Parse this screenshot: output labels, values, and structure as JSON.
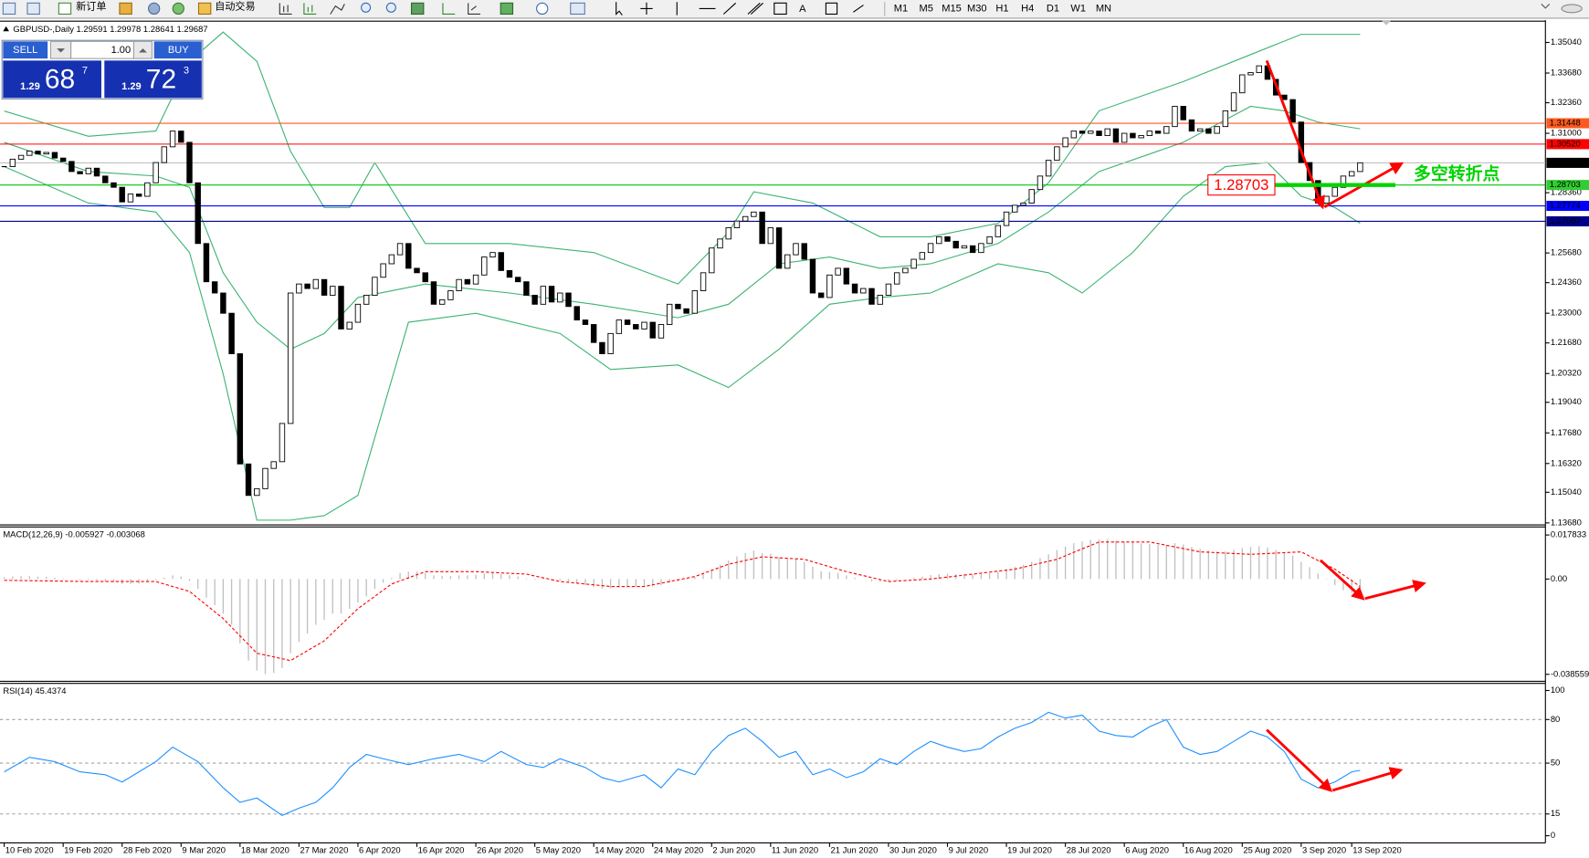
{
  "toolbar": {
    "new_order": "新订单",
    "auto_trading": "自动交易",
    "timeframes": [
      "M1",
      "M5",
      "M15",
      "M30",
      "H1",
      "H4",
      "D1",
      "W1",
      "MN"
    ]
  },
  "trade_panel": {
    "sell": "SELL",
    "lot": "1.00",
    "buy": "BUY",
    "sell_big": "1.29",
    "sell_pips": "68",
    "sell_frac": "7",
    "buy_big": "1.29",
    "buy_pips": "72",
    "buy_frac": "3"
  },
  "chart_data": [
    {
      "type": "candlestick",
      "title": "GBPUSD-,Daily 1.29591 1.29978 1.28641 1.29687",
      "bull_color": "#ffffff",
      "bear_color": "#000000",
      "closes": [
        1.2952,
        1.2985,
        1.3002,
        1.3021,
        1.3008,
        1.3015,
        1.299,
        1.2975,
        1.293,
        1.292,
        1.2945,
        1.291,
        1.288,
        1.286,
        1.2795,
        1.283,
        1.282,
        1.288,
        1.297,
        1.304,
        1.311,
        1.306,
        1.288,
        1.261,
        1.244,
        1.239,
        1.23,
        1.212,
        1.163,
        1.149,
        1.152,
        1.161,
        1.164,
        1.181,
        1.239,
        1.243,
        1.241,
        1.245,
        1.238,
        1.242,
        1.223,
        1.226,
        1.234,
        1.238,
        1.246,
        1.252,
        1.256,
        1.261,
        1.25,
        1.248,
        1.244,
        1.234,
        1.236,
        1.24,
        1.245,
        1.243,
        1.247,
        1.255,
        1.257,
        1.249,
        1.246,
        1.244,
        1.238,
        1.234,
        1.242,
        1.235,
        1.239,
        1.233,
        1.227,
        1.225,
        1.217,
        1.212,
        1.221,
        1.227,
        1.225,
        1.223,
        1.226,
        1.219,
        1.225,
        1.234,
        1.232,
        1.23,
        1.24,
        1.248,
        1.259,
        1.263,
        1.268,
        1.271,
        1.273,
        1.275,
        1.261,
        1.268,
        1.25,
        1.256,
        1.261,
        1.254,
        1.239,
        1.237,
        1.247,
        1.25,
        1.243,
        1.239,
        1.241,
        1.234,
        1.238,
        1.243,
        1.248,
        1.25,
        1.254,
        1.257,
        1.261,
        1.264,
        1.262,
        1.259,
        1.26,
        1.257,
        1.261,
        1.264,
        1.269,
        1.275,
        1.278,
        1.279,
        1.285,
        1.291,
        1.298,
        1.304,
        1.308,
        1.311,
        1.31,
        1.311,
        1.309,
        1.312,
        1.306,
        1.31,
        1.308,
        1.309,
        1.311,
        1.31,
        1.313,
        1.322,
        1.316,
        1.311,
        1.312,
        1.31,
        1.313,
        1.32,
        1.328,
        1.336,
        1.337,
        1.34,
        1.334,
        1.327,
        1.325,
        1.315,
        1.297,
        1.289,
        1.279,
        1.282,
        1.286,
        1.291,
        1.293,
        1.2969
      ],
      "bands": {
        "color": "#3cb371",
        "upper": {
          "x": [
            0,
            10,
            18,
            22,
            26,
            30,
            34,
            38,
            41,
            44,
            50,
            60,
            70,
            80,
            86,
            89,
            96,
            104,
            110,
            118,
            124,
            130,
            140,
            148,
            154,
            161
          ],
          "values": [
            1.3199,
            1.3087,
            1.311,
            1.342,
            1.355,
            1.342,
            1.302,
            1.277,
            1.277,
            1.297,
            1.261,
            1.261,
            1.257,
            1.243,
            1.266,
            1.284,
            1.279,
            1.264,
            1.264,
            1.27,
            1.288,
            1.32,
            1.333,
            1.345,
            1.354,
            1.354
          ]
        },
        "middle": {
          "x": [
            0,
            10,
            18,
            22,
            26,
            30,
            34,
            38,
            42,
            50,
            60,
            70,
            80,
            86,
            92,
            98,
            104,
            110,
            118,
            124,
            130,
            140,
            148,
            152,
            156,
            161
          ],
          "values": [
            1.306,
            1.293,
            1.291,
            1.286,
            1.248,
            1.226,
            1.214,
            1.221,
            1.237,
            1.243,
            1.239,
            1.234,
            1.228,
            1.234,
            1.252,
            1.255,
            1.25,
            1.252,
            1.261,
            1.275,
            1.293,
            1.306,
            1.322,
            1.32,
            1.315,
            1.312
          ]
        },
        "lower": {
          "x": [
            0,
            10,
            18,
            22,
            26,
            30,
            34,
            38,
            42,
            48,
            56,
            66,
            72,
            80,
            86,
            92,
            98,
            104,
            110,
            118,
            124,
            128,
            134,
            140,
            145,
            150,
            154,
            158,
            161
          ],
          "values": [
            1.2952,
            1.279,
            1.275,
            1.257,
            1.203,
            1.138,
            1.138,
            1.14,
            1.149,
            1.226,
            1.23,
            1.221,
            1.205,
            1.207,
            1.197,
            1.214,
            1.234,
            1.237,
            1.239,
            1.252,
            1.248,
            1.239,
            1.257,
            1.282,
            1.2952,
            1.297,
            1.282,
            1.277,
            1.27
          ]
        }
      },
      "hlines": [
        {
          "value": 1.31448,
          "color": "#ff5a1e",
          "label_bg": "#ff5a1e"
        },
        {
          "value": 1.3052,
          "label": "1.30520",
          "color": "#ff0000",
          "label_bg": "#ff0000"
        },
        {
          "value": 1.29687,
          "color": "#c0c0c0",
          "label_bg": "#000000"
        },
        {
          "value": 1.28703,
          "color": "#00c800",
          "label_bg": "#32cd32"
        },
        {
          "value": 1.27774,
          "color": "#0000ff",
          "label_bg": "#0000ff"
        },
        {
          "value": 1.27087,
          "color": "#00008b",
          "label_bg": "#00008b"
        }
      ],
      "annotation": {
        "text": "多空转折点",
        "color": "#00d400"
      },
      "xlim": [
        -0.5,
        183
      ],
      "ylim": [
        1.1359,
        1.3594
      ],
      "yticks": [
        {
          "value": 1.3504,
          "label": "1.35040"
        },
        {
          "value": 1.3368,
          "label": "1.33680"
        },
        {
          "value": 1.3236,
          "label": "1.32360"
        },
        {
          "value": 1.31,
          "label": "1.31000"
        },
        {
          "value": 1.2836,
          "label": "1.28360"
        },
        {
          "value": 1.2568,
          "label": "1.25680"
        },
        {
          "value": 1.2436,
          "label": "1.24360"
        },
        {
          "value": 1.23,
          "label": "1.23000"
        },
        {
          "value": 1.2168,
          "label": "1.21680"
        },
        {
          "value": 1.2032,
          "label": "1.20320"
        },
        {
          "value": 1.1904,
          "label": "1.19040"
        },
        {
          "value": 1.1768,
          "label": "1.17680"
        },
        {
          "value": 1.1632,
          "label": "1.16320"
        },
        {
          "value": 1.1504,
          "label": "1.15040"
        },
        {
          "value": 1.1368,
          "label": "1.13680"
        }
      ]
    },
    {
      "type": "macd",
      "title": "MACD(12,26,9) -0.005927 -0.003068",
      "histogram": {
        "color": "#c0c0c0",
        "values": [
          0.0008,
          0.001,
          0.0011,
          0.0012,
          0.001,
          0.0009,
          0.0006,
          0.0003,
          -0.0001,
          -0.0004,
          -0.0003,
          -0.0006,
          -0.001,
          -0.0013,
          -0.002,
          -0.0019,
          -0.0018,
          -0.0012,
          -0.0004,
          0.0006,
          0.0015,
          0.001,
          -0.0008,
          -0.004,
          -0.0075,
          -0.0105,
          -0.014,
          -0.0185,
          -0.026,
          -0.033,
          -0.037,
          -0.0385,
          -0.038,
          -0.036,
          -0.03,
          -0.0255,
          -0.022,
          -0.0185,
          -0.0165,
          -0.014,
          -0.014,
          -0.012,
          -0.0095,
          -0.007,
          -0.004,
          -0.0015,
          0.0005,
          0.0025,
          0.003,
          0.003,
          0.0025,
          0.0015,
          0.0012,
          0.0012,
          0.0015,
          0.0015,
          0.0017,
          0.0022,
          0.0025,
          0.002,
          0.0015,
          0.001,
          0.0003,
          -0.0003,
          -0.0002,
          -0.0006,
          -0.0006,
          -0.001,
          -0.0017,
          -0.0024,
          -0.0033,
          -0.004,
          -0.0038,
          -0.0034,
          -0.0032,
          -0.003,
          -0.0028,
          -0.003,
          -0.0025,
          -0.0015,
          -0.0008,
          -0.0003,
          0.0008,
          0.0022,
          0.004,
          0.0058,
          0.0075,
          0.0092,
          0.0105,
          0.0115,
          0.0105,
          0.0102,
          0.0088,
          0.0082,
          0.008,
          0.007,
          0.005,
          0.0032,
          0.0028,
          0.0025,
          0.0015,
          0.0005,
          0.0,
          -0.001,
          -0.0012,
          -0.001,
          -0.0005,
          0.0,
          0.0005,
          0.001,
          0.0016,
          0.002,
          0.0022,
          0.002,
          0.002,
          0.0018,
          0.002,
          0.0024,
          0.003,
          0.004,
          0.005,
          0.0058,
          0.007,
          0.0085,
          0.01,
          0.0118,
          0.0132,
          0.0145,
          0.0152,
          0.0158,
          0.016,
          0.0162,
          0.0155,
          0.0152,
          0.0148,
          0.0144,
          0.0142,
          0.0138,
          0.0138,
          0.0145,
          0.014,
          0.013,
          0.0122,
          0.0115,
          0.0112,
          0.0112,
          0.0118,
          0.0125,
          0.013,
          0.0133,
          0.0128,
          0.0118,
          0.0108,
          0.0095,
          0.007,
          0.0048,
          0.0022,
          0.0002,
          -0.0025,
          -0.0045,
          -0.0055,
          -0.0059
        ]
      },
      "signal": {
        "color": "#ff0000",
        "x": [
          0,
          10,
          18,
          22,
          26,
          30,
          34,
          38,
          42,
          46,
          50,
          56,
          62,
          66,
          72,
          76,
          82,
          86,
          90,
          95,
          100,
          105,
          110,
          115,
          120,
          125,
          130,
          136,
          142,
          148,
          154,
          158,
          161
        ],
        "values": [
          -0.0005,
          -0.001,
          -0.001,
          -0.005,
          -0.016,
          -0.03,
          -0.033,
          -0.025,
          -0.012,
          -0.002,
          0.003,
          0.003,
          0.002,
          -0.001,
          -0.003,
          -0.003,
          0.001,
          0.006,
          0.009,
          0.008,
          0.003,
          -0.001,
          0,
          0.002,
          0.004,
          0.008,
          0.015,
          0.015,
          0.011,
          0.01,
          0.011,
          0.004,
          -0.003
        ]
      },
      "xlim": [
        -0.5,
        183
      ],
      "ylim": [
        -0.0414,
        0.0211
      ],
      "yticks": [
        0.017833,
        {
          "value": 0,
          "label": "0.00"
        },
        -0.038559
      ]
    },
    {
      "type": "line",
      "title": "RSI(14) 45.4374",
      "color": "#1e90ff",
      "x": [
        0,
        3,
        6,
        9,
        12,
        14,
        16,
        18,
        20,
        23,
        26,
        28,
        30,
        33,
        35,
        37,
        39,
        41,
        43,
        45,
        48,
        51,
        54,
        57,
        59,
        62,
        64,
        66,
        69,
        71,
        73,
        76,
        78,
        80,
        82,
        84,
        86,
        88,
        90,
        92,
        94,
        96,
        98,
        100,
        102,
        104,
        106,
        108,
        110,
        112,
        114,
        116,
        118,
        120,
        122,
        124,
        126,
        128,
        130,
        132,
        134,
        136,
        138,
        140,
        142,
        144,
        146,
        148,
        150,
        152,
        154,
        156,
        158,
        160,
        161
      ],
      "values": [
        44,
        54,
        51,
        44,
        42,
        37,
        44,
        51,
        61,
        51,
        33,
        23,
        26,
        14,
        19,
        23,
        33,
        47,
        56,
        53,
        49,
        53,
        56,
        51,
        58,
        49,
        47,
        53,
        47,
        40,
        37,
        42,
        33,
        46,
        42,
        58,
        69,
        74,
        65,
        54,
        58,
        42,
        46,
        40,
        44,
        53,
        49,
        58,
        65,
        61,
        58,
        60,
        68,
        74,
        78,
        85,
        81,
        83,
        72,
        69,
        68,
        75,
        80,
        61,
        56,
        58,
        65,
        72,
        68,
        58,
        39,
        33,
        37,
        44,
        45
      ],
      "xlim": [
        -0.5,
        183
      ],
      "ylim": [
        -4.9,
        104.9
      ],
      "yticks": [
        100,
        80,
        50,
        15,
        0
      ],
      "levels": [
        80,
        50,
        15
      ],
      "xticks": [
        {
          "value": 0,
          "label": "10 Feb 2020"
        },
        {
          "value": 7,
          "label": "19 Feb 2020"
        },
        {
          "value": 14,
          "label": "28 Feb 2020"
        },
        {
          "value": 21,
          "label": "9 Mar 2020"
        },
        {
          "value": 28,
          "label": "18 Mar 2020"
        },
        {
          "value": 35,
          "label": "27 Mar 2020"
        },
        {
          "value": 42,
          "label": "6 Apr 2020"
        },
        {
          "value": 49,
          "label": "16 Apr 2020"
        },
        {
          "value": 56,
          "label": "26 Apr 2020"
        },
        {
          "value": 63,
          "label": "5 May 2020"
        },
        {
          "value": 70,
          "label": "14 May 2020"
        },
        {
          "value": 77,
          "label": "24 May 2020"
        },
        {
          "value": 84,
          "label": "2 Jun 2020"
        },
        {
          "value": 91,
          "label": "11 Jun 2020"
        },
        {
          "value": 98,
          "label": "21 Jun 2020"
        },
        {
          "value": 105,
          "label": "30 Jun 2020"
        },
        {
          "value": 112,
          "label": "9 Jul 2020"
        },
        {
          "value": 119,
          "label": "19 Jul 2020"
        },
        {
          "value": 126,
          "label": "28 Jul 2020"
        },
        {
          "value": 133,
          "label": "6 Aug 2020"
        },
        {
          "value": 140,
          "label": "16 Aug 2020"
        },
        {
          "value": 147,
          "label": "25 Aug 2020"
        },
        {
          "value": 154,
          "label": "3 Sep 2020"
        },
        {
          "value": 160,
          "label": "13 Sep 2020"
        }
      ]
    }
  ]
}
